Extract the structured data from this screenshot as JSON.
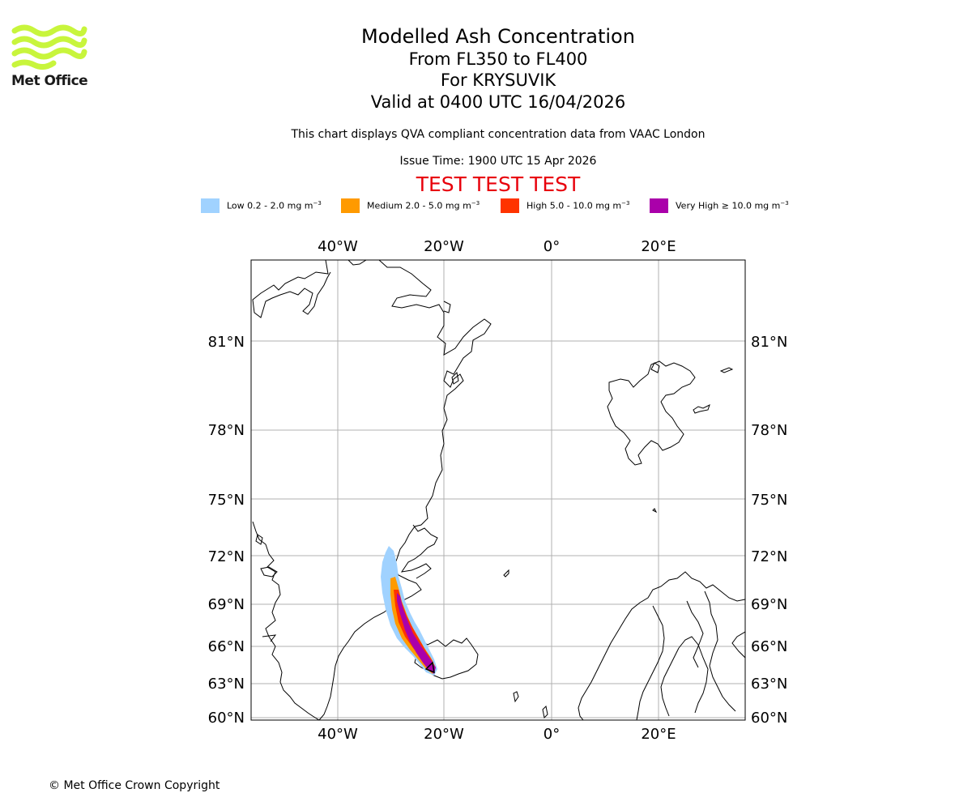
{
  "header": {
    "logo_text": "Met Office",
    "title": "Modelled Ash Concentration",
    "levels": "From FL350 to FL400",
    "volcano": "For KRYSUVIK",
    "valid": "Valid at 0400 UTC 16/04/2026",
    "description": "This chart displays QVA compliant concentration data from VAAC London",
    "issue_time": "Issue Time: 1900 UTC 15 Apr 2026",
    "test_banner": "TEST TEST TEST"
  },
  "colors": {
    "low": "#a0d2ff",
    "medium": "#ff9a00",
    "high": "#ff3300",
    "very_high": "#aa00aa",
    "test_banner": "#e8000b",
    "logo": "#c8f53c"
  },
  "legend": [
    {
      "key": "low",
      "label": "Low 0.2 - 2.0 mg m",
      "exp": "−3"
    },
    {
      "key": "medium",
      "label": "Medium 2.0 - 5.0 mg m",
      "exp": "−3"
    },
    {
      "key": "high",
      "label": "High 5.0 - 10.0 mg m",
      "exp": "−3"
    },
    {
      "key": "very_high",
      "label": "Very High  ≥  10.0 mg m",
      "exp": "−3"
    }
  ],
  "map": {
    "lon_labels": [
      "40°W",
      "20°W",
      "0°",
      "20°E"
    ],
    "lat_labels": [
      "81°N",
      "78°N",
      "75°N",
      "72°N",
      "69°N",
      "66°N",
      "63°N",
      "60°N"
    ]
  },
  "footer": {
    "copyright": "© Met Office Crown Copyright"
  }
}
